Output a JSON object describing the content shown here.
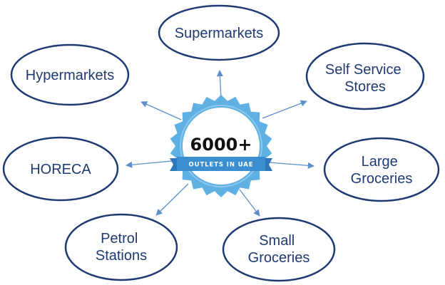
{
  "center": {
    "title": "6000+",
    "subtitle": "OUTLETS IN UAE"
  },
  "nodes": [
    {
      "id": "supermarkets",
      "lines": [
        "Supermarkets"
      ]
    },
    {
      "id": "self-service-stores",
      "lines": [
        "Self Service",
        "Stores"
      ]
    },
    {
      "id": "large-groceries",
      "lines": [
        "Large",
        "Groceries"
      ]
    },
    {
      "id": "small-groceries",
      "lines": [
        "Small",
        "Groceries"
      ]
    },
    {
      "id": "petrol-stations",
      "lines": [
        "Petrol",
        "Stations"
      ]
    },
    {
      "id": "horeca",
      "lines": [
        "HORECA"
      ]
    },
    {
      "id": "hypermarkets",
      "lines": [
        "Hypermarkets"
      ]
    }
  ],
  "colors": {
    "ellipse_stroke": "#1f3a73",
    "node_text": "#1f3a73",
    "arrow": "#5b8fc9",
    "badge_outer": "#5fb0e3",
    "badge_inner": "#ffffff",
    "ribbon": "#3b8fd0",
    "badge_text": "#111111"
  }
}
